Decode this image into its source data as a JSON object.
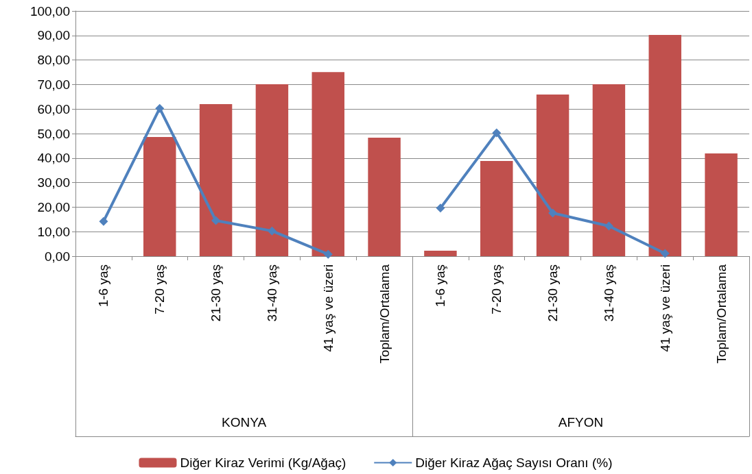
{
  "chart_data": {
    "type": "bar",
    "categories": [
      "1-6 yaş",
      "7-20 yaş",
      "21-30 yaş",
      "31-40 yaş",
      "41 yaş ve üzeri",
      "Toplam/Ortalama",
      "1-6 yaş",
      "7-20 yaş",
      "21-30 yaş",
      "31-40 yaş",
      "41 yaş ve üzeri",
      "Toplam/Ortalama"
    ],
    "series": [
      {
        "name": "Diğer Kiraz Verimi (Kg/Ağaç)",
        "color": "#c0504d",
        "values": [
          0,
          48.6,
          62.0,
          70.1,
          75.1,
          48.3,
          2.2,
          38.8,
          65.9,
          70.1,
          90.2,
          41.9
        ]
      },
      {
        "name": "Diğer Kiraz Ağaç Sayısı Oranı (%)",
        "type": "line",
        "color": "#4f81bd",
        "marker": "diamond",
        "values": [
          14.2,
          60.3,
          14.5,
          10.3,
          0.8,
          null,
          19.6,
          50.3,
          17.6,
          12.3,
          1.1,
          null
        ]
      }
    ],
    "annotations": [
      "KONYA",
      "AFYON"
    ],
    "ylim": [
      0,
      100
    ],
    "yticks": [
      {
        "value": 0,
        "label": "0,00"
      },
      {
        "value": 10,
        "label": "10,00"
      },
      {
        "value": 20,
        "label": "20,00"
      },
      {
        "value": 30,
        "label": "30,00"
      },
      {
        "value": 40,
        "label": "40,00"
      },
      {
        "value": 50,
        "label": "50,00"
      },
      {
        "value": 60,
        "label": "60,00"
      },
      {
        "value": 70,
        "label": "70,00"
      },
      {
        "value": 80,
        "label": "80,00"
      },
      {
        "value": 90,
        "label": "90,00"
      },
      {
        "value": 100,
        "label": "100,00"
      }
    ],
    "grid": "y",
    "legend": "bottom"
  }
}
